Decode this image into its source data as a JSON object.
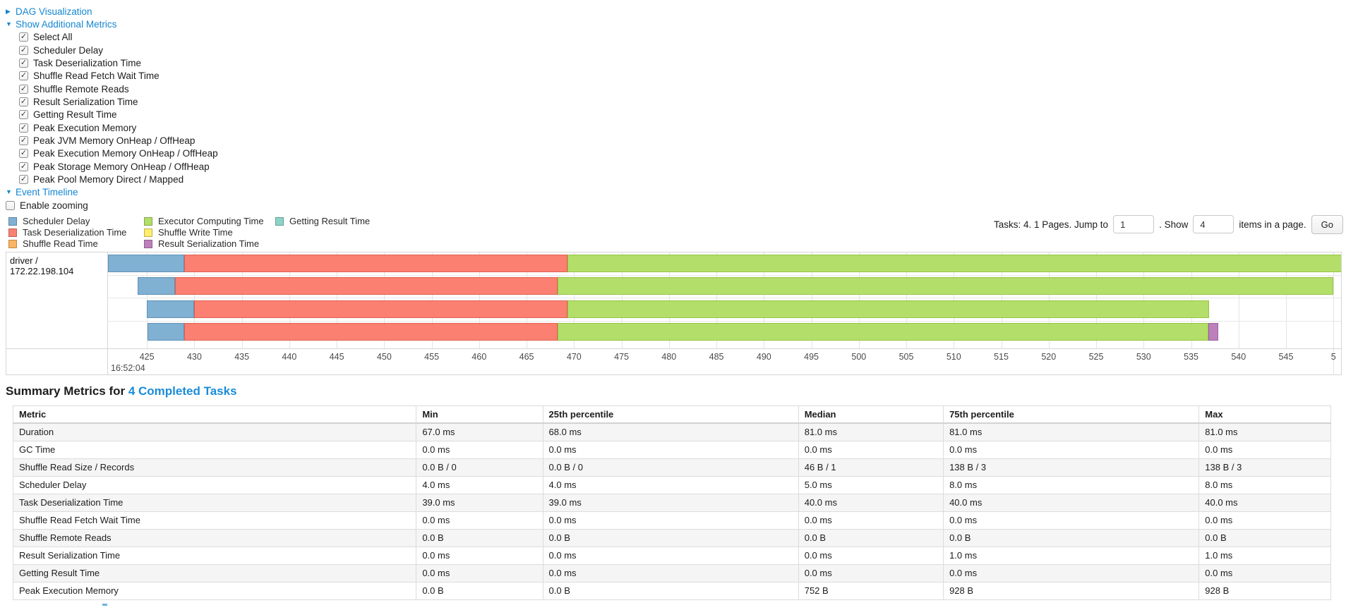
{
  "toggles": {
    "dag": {
      "label": "DAG Visualization",
      "state": "collapsed"
    },
    "metrics": {
      "label": "Show Additional Metrics",
      "state": "expanded"
    },
    "timeline": {
      "label": "Event Timeline",
      "state": "expanded"
    }
  },
  "metric_checkboxes": [
    {
      "label": "Select All",
      "checked": true
    },
    {
      "label": "Scheduler Delay",
      "checked": true
    },
    {
      "label": "Task Deserialization Time",
      "checked": true
    },
    {
      "label": "Shuffle Read Fetch Wait Time",
      "checked": true
    },
    {
      "label": "Shuffle Remote Reads",
      "checked": true
    },
    {
      "label": "Result Serialization Time",
      "checked": true
    },
    {
      "label": "Getting Result Time",
      "checked": true
    },
    {
      "label": "Peak Execution Memory",
      "checked": true
    },
    {
      "label": "Peak JVM Memory OnHeap / OffHeap",
      "checked": true
    },
    {
      "label": "Peak Execution Memory OnHeap / OffHeap",
      "checked": true
    },
    {
      "label": "Peak Storage Memory OnHeap / OffHeap",
      "checked": true
    },
    {
      "label": "Peak Pool Memory Direct / Mapped",
      "checked": true
    }
  ],
  "enable_zooming": {
    "label": "Enable zooming",
    "checked": false
  },
  "pagination": {
    "prefix": "Tasks: 4. 1 Pages. Jump to",
    "jump_value": "1",
    "mid": ". Show",
    "show_value": "4",
    "suffix": "items in a page.",
    "go_label": "Go"
  },
  "colors": {
    "link_blue": "#1586d1",
    "segments": {
      "scheduler_delay": {
        "fill": "#80B1D3",
        "border": "#5F90B6"
      },
      "task_deserialization": {
        "fill": "#FB8072",
        "border": "#E05F51"
      },
      "shuffle_read": {
        "fill": "#FDB462",
        "border": "#E09A40"
      },
      "executor_computing": {
        "fill": "#B3DE69",
        "border": "#95C544"
      },
      "shuffle_write": {
        "fill": "#FFED6F",
        "border": "#E0CE45"
      },
      "result_serialization": {
        "fill": "#BC80BD",
        "border": "#9C5F9E"
      },
      "getting_result": {
        "fill": "#8DD3C7",
        "border": "#67B2A4"
      }
    }
  },
  "chart_data": {
    "type": "timeline",
    "row_label": "driver / 172.22.198.104",
    "axis_domain": [
      420.9,
      550.8
    ],
    "axis_major_label": "16:52:04",
    "axis_ticks": [
      {
        "v": 425,
        "label": "425"
      },
      {
        "v": 430,
        "label": "430"
      },
      {
        "v": 435,
        "label": "435"
      },
      {
        "v": 440,
        "label": "440"
      },
      {
        "v": 445,
        "label": "445"
      },
      {
        "v": 450,
        "label": "450"
      },
      {
        "v": 455,
        "label": "455"
      },
      {
        "v": 460,
        "label": "460"
      },
      {
        "v": 465,
        "label": "465"
      },
      {
        "v": 470,
        "label": "470"
      },
      {
        "v": 475,
        "label": "475"
      },
      {
        "v": 480,
        "label": "480"
      },
      {
        "v": 485,
        "label": "485"
      },
      {
        "v": 490,
        "label": "490"
      },
      {
        "v": 495,
        "label": "495"
      },
      {
        "v": 500,
        "label": "500"
      },
      {
        "v": 505,
        "label": "505"
      },
      {
        "v": 510,
        "label": "510"
      },
      {
        "v": 515,
        "label": "515"
      },
      {
        "v": 520,
        "label": "520"
      },
      {
        "v": 525,
        "label": "525"
      },
      {
        "v": 530,
        "label": "530"
      },
      {
        "v": 535,
        "label": "535"
      },
      {
        "v": 540,
        "label": "540"
      },
      {
        "v": 545,
        "label": "545"
      },
      {
        "v": 550,
        "label": "5",
        "major": true
      }
    ],
    "legend_columns": [
      [
        {
          "label": "Scheduler Delay",
          "key": "scheduler_delay"
        },
        {
          "label": "Task Deserialization Time",
          "key": "task_deserialization"
        },
        {
          "label": "Shuffle Read Time",
          "key": "shuffle_read"
        }
      ],
      [
        {
          "label": "Executor Computing Time",
          "key": "executor_computing"
        },
        {
          "label": "Shuffle Write Time",
          "key": "shuffle_write"
        },
        {
          "label": "Result Serialization Time",
          "key": "result_serialization"
        }
      ],
      [
        {
          "label": "Getting Result Time",
          "key": "getting_result"
        }
      ]
    ],
    "tasks": [
      {
        "segments": [
          {
            "key": "scheduler_delay",
            "start": 420.9,
            "end": 428.9
          },
          {
            "key": "task_deserialization",
            "start": 428.9,
            "end": 469.3
          },
          {
            "key": "executor_computing",
            "start": 469.3,
            "end": 550.9
          }
        ]
      },
      {
        "segments": [
          {
            "key": "scheduler_delay",
            "start": 424.0,
            "end": 428.0
          },
          {
            "key": "task_deserialization",
            "start": 428.0,
            "end": 468.3
          },
          {
            "key": "executor_computing",
            "start": 468.3,
            "end": 550.0
          }
        ]
      },
      {
        "segments": [
          {
            "key": "scheduler_delay",
            "start": 425.0,
            "end": 430.0
          },
          {
            "key": "task_deserialization",
            "start": 430.0,
            "end": 469.3
          },
          {
            "key": "executor_computing",
            "start": 469.3,
            "end": 536.9
          }
        ]
      },
      {
        "segments": [
          {
            "key": "scheduler_delay",
            "start": 425.1,
            "end": 428.9
          },
          {
            "key": "task_deserialization",
            "start": 428.9,
            "end": 468.3
          },
          {
            "key": "executor_computing",
            "start": 468.3,
            "end": 536.8
          },
          {
            "key": "result_serialization",
            "start": 536.8,
            "end": 537.9
          }
        ]
      }
    ]
  },
  "summary": {
    "title_prefix": "Summary Metrics for ",
    "title_link": "4 Completed Tasks",
    "headers": [
      "Metric",
      "Min",
      "25th percentile",
      "Median",
      "75th percentile",
      "Max"
    ],
    "col_widths_pct": [
      30.6,
      9.6,
      19.4,
      11.0,
      19.4,
      10.0
    ],
    "rows": [
      {
        "metric": "Duration",
        "values": [
          "67.0 ms",
          "68.0 ms",
          "81.0 ms",
          "81.0 ms",
          "81.0 ms"
        ]
      },
      {
        "metric": "GC Time",
        "values": [
          "0.0 ms",
          "0.0 ms",
          "0.0 ms",
          "0.0 ms",
          "0.0 ms"
        ]
      },
      {
        "metric": "Shuffle Read Size / Records",
        "values": [
          "0.0 B / 0",
          "0.0 B / 0",
          "46 B / 1",
          "138 B / 3",
          "138 B / 3"
        ]
      },
      {
        "metric": "Scheduler Delay",
        "values": [
          "4.0 ms",
          "4.0 ms",
          "5.0 ms",
          "8.0 ms",
          "8.0 ms"
        ]
      },
      {
        "metric": "Task Deserialization Time",
        "values": [
          "39.0 ms",
          "39.0 ms",
          "40.0 ms",
          "40.0 ms",
          "40.0 ms"
        ]
      },
      {
        "metric": "Shuffle Read Fetch Wait Time",
        "values": [
          "0.0 ms",
          "0.0 ms",
          "0.0 ms",
          "0.0 ms",
          "0.0 ms"
        ]
      },
      {
        "metric": "Shuffle Remote Reads",
        "values": [
          "0.0 B",
          "0.0 B",
          "0.0 B",
          "0.0 B",
          "0.0 B"
        ]
      },
      {
        "metric": "Result Serialization Time",
        "values": [
          "0.0 ms",
          "0.0 ms",
          "0.0 ms",
          "1.0 ms",
          "1.0 ms"
        ]
      },
      {
        "metric": "Getting Result Time",
        "values": [
          "0.0 ms",
          "0.0 ms",
          "0.0 ms",
          "0.0 ms",
          "0.0 ms"
        ]
      },
      {
        "metric": "Peak Execution Memory",
        "values": [
          "0.0 B",
          "0.0 B",
          "752 B",
          "928 B",
          "928 B"
        ]
      }
    ]
  }
}
